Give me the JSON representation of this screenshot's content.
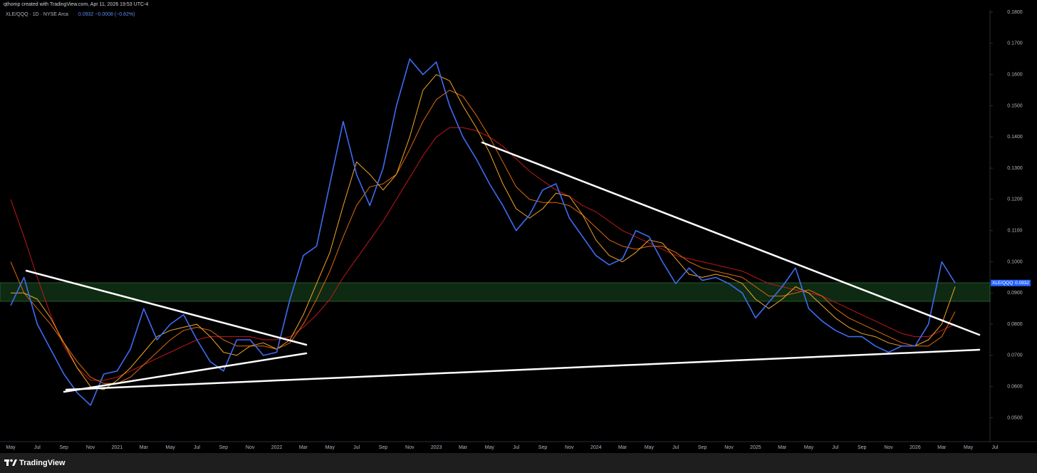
{
  "header": {
    "credit": "qthomp created with TradingView.com, Apr 11, 2026 19:53 UTC-4"
  },
  "chart_data": {
    "type": "line",
    "title": "XLE/QQQ · 1D · NYSE Arca",
    "subtitle": "0.0932 −0.0008 (−0.82%)",
    "categories": [
      "May",
      null,
      "Jul",
      null,
      "Sep",
      null,
      "Nov",
      null,
      "2021",
      null,
      "Mar",
      null,
      "May",
      null,
      "Jul",
      null,
      "Sep",
      null,
      "Nov",
      null,
      "2022",
      null,
      "Mar",
      null,
      "May",
      null,
      "Jul",
      null,
      "Sep",
      null,
      "Nov",
      null,
      "2023",
      null,
      "Mar",
      null,
      "May",
      null,
      "Jul",
      null,
      "Sep",
      null,
      "Nov",
      null,
      "2024",
      null,
      "Mar",
      null,
      "May",
      null,
      "Jul",
      null,
      "Sep",
      null,
      "Nov",
      null,
      "2025",
      null,
      "Mar",
      null,
      "May",
      null,
      "Jul",
      null,
      "Sep",
      null,
      "Nov",
      null,
      "2026",
      null,
      "Mar",
      null,
      "May",
      null,
      "Jul"
    ],
    "series": [
      {
        "name": "XLE/QQQ",
        "color": "#3d6cf2",
        "width": 1.6,
        "values": [
          0.086,
          0.095,
          0.08,
          0.072,
          0.064,
          0.058,
          0.054,
          0.064,
          0.065,
          0.072,
          0.085,
          0.075,
          0.08,
          0.083,
          0.075,
          0.068,
          0.065,
          0.075,
          0.075,
          0.07,
          0.071,
          0.088,
          0.102,
          0.105,
          0.125,
          0.145,
          0.128,
          0.118,
          0.13,
          0.15,
          0.165,
          0.16,
          0.164,
          0.15,
          0.14,
          0.133,
          0.125,
          0.118,
          0.11,
          0.115,
          0.123,
          0.125,
          0.114,
          0.108,
          0.102,
          0.099,
          0.101,
          0.11,
          0.108,
          0.1,
          0.093,
          0.098,
          0.094,
          0.095,
          0.093,
          0.09,
          0.082,
          0.087,
          0.092,
          0.098,
          0.085,
          0.081,
          0.078,
          0.076,
          0.076,
          0.073,
          0.071,
          0.073,
          0.073,
          0.08,
          0.1,
          0.0932,
          null,
          null,
          null
        ]
      },
      {
        "color": "#f5a623",
        "width": 1,
        "values": [
          0.09,
          0.09,
          0.088,
          0.082,
          0.074,
          0.066,
          0.06,
          0.059,
          0.062,
          0.066,
          0.071,
          0.076,
          0.078,
          0.079,
          0.08,
          0.076,
          0.071,
          0.07,
          0.073,
          0.074,
          0.072,
          0.075,
          0.083,
          0.093,
          0.103,
          0.118,
          0.132,
          0.128,
          0.123,
          0.128,
          0.14,
          0.155,
          0.16,
          0.158,
          0.15,
          0.143,
          0.135,
          0.125,
          0.117,
          0.114,
          0.117,
          0.122,
          0.121,
          0.115,
          0.107,
          0.102,
          0.1,
          0.103,
          0.107,
          0.106,
          0.101,
          0.096,
          0.095,
          0.096,
          0.095,
          0.093,
          0.088,
          0.085,
          0.088,
          0.092,
          0.09,
          0.086,
          0.082,
          0.079,
          0.077,
          0.076,
          0.074,
          0.073,
          0.073,
          0.075,
          0.08,
          0.092,
          null,
          null,
          null
        ]
      },
      {
        "color": "#e06a0c",
        "width": 1,
        "values": [
          0.1,
          0.09,
          0.085,
          0.08,
          0.074,
          0.068,
          0.063,
          0.061,
          0.061,
          0.063,
          0.067,
          0.071,
          0.075,
          0.078,
          0.079,
          0.078,
          0.075,
          0.073,
          0.073,
          0.073,
          0.072,
          0.074,
          0.08,
          0.088,
          0.097,
          0.108,
          0.118,
          0.124,
          0.125,
          0.128,
          0.136,
          0.145,
          0.152,
          0.155,
          0.153,
          0.147,
          0.14,
          0.132,
          0.124,
          0.12,
          0.119,
          0.119,
          0.118,
          0.115,
          0.111,
          0.107,
          0.105,
          0.104,
          0.105,
          0.105,
          0.103,
          0.1,
          0.098,
          0.097,
          0.096,
          0.095,
          0.092,
          0.089,
          0.089,
          0.09,
          0.091,
          0.089,
          0.085,
          0.082,
          0.08,
          0.078,
          0.076,
          0.074,
          0.073,
          0.073,
          0.076,
          0.084,
          null,
          null,
          null
        ]
      },
      {
        "color": "#c4161c",
        "width": 1,
        "values": [
          0.12,
          0.108,
          0.095,
          0.083,
          0.073,
          0.066,
          0.062,
          0.062,
          0.063,
          0.065,
          0.067,
          0.069,
          0.071,
          0.073,
          0.075,
          0.076,
          0.076,
          0.076,
          0.076,
          0.075,
          0.075,
          0.076,
          0.079,
          0.083,
          0.088,
          0.095,
          0.101,
          0.107,
          0.113,
          0.12,
          0.127,
          0.134,
          0.14,
          0.143,
          0.143,
          0.142,
          0.14,
          0.137,
          0.133,
          0.129,
          0.126,
          0.123,
          0.121,
          0.118,
          0.116,
          0.113,
          0.11,
          0.108,
          0.106,
          0.104,
          0.102,
          0.101,
          0.1,
          0.099,
          0.098,
          0.097,
          0.095,
          0.093,
          0.092,
          0.091,
          0.09,
          0.089,
          0.087,
          0.085,
          0.083,
          0.081,
          0.079,
          0.077,
          0.076,
          0.076,
          0.078,
          0.08,
          null,
          null,
          null
        ]
      }
    ],
    "ylim": [
      0.0428,
      0.1807
    ],
    "yticks": [
      {
        "value": 0.05,
        "label": "0.0500"
      },
      {
        "value": 0.06,
        "label": "0.0600"
      },
      {
        "value": 0.07,
        "label": "0.0700"
      },
      {
        "value": 0.08,
        "label": "0.0800"
      },
      {
        "value": 0.09,
        "label": "0.0900"
      },
      {
        "value": 0.1,
        "label": "0.1000"
      },
      {
        "value": 0.11,
        "label": "0.1100"
      },
      {
        "value": 0.12,
        "label": "0.1200"
      },
      {
        "value": 0.13,
        "label": "0.1300"
      },
      {
        "value": 0.14,
        "label": "0.1400"
      },
      {
        "value": 0.15,
        "label": "0.1500"
      },
      {
        "value": 0.16,
        "label": "0.1600"
      },
      {
        "value": 0.17,
        "label": "0.1700"
      },
      {
        "value": 0.18,
        "label": "0.1800"
      }
    ],
    "grid": false,
    "price_tag": {
      "value": 0.0932,
      "label": "0.0932",
      "color": "#2962ff"
    }
  },
  "footer": {
    "brand": "TradingView"
  }
}
